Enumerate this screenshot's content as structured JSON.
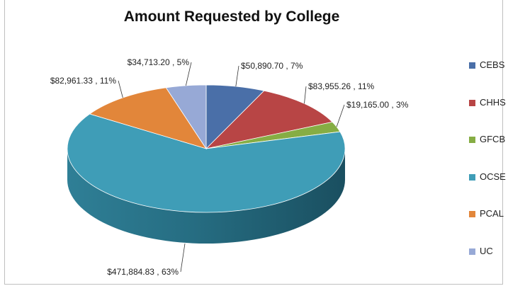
{
  "chart_data": {
    "type": "pie",
    "title": "Amount Requested by College",
    "series": [
      {
        "name": "CEBS",
        "value": 50890.7,
        "label": "$50,890.70 , 7%",
        "color": "#4a6fa8"
      },
      {
        "name": "CHHS",
        "value": 83955.26,
        "label": "$83,955.26 , 11%",
        "color": "#b84545"
      },
      {
        "name": "GFCB",
        "value": 19165.0,
        "label": "$19,165.00 , 3%",
        "color": "#86ad44"
      },
      {
        "name": "OCSE",
        "value": 471884.83,
        "label": "$471,884.83 , 63%",
        "color": "#3f9db7"
      },
      {
        "name": "PCAL",
        "value": 82961.33,
        "label": "$82,961.33 , 11%",
        "color": "#e2863a"
      },
      {
        "name": "UC",
        "value": 34713.2,
        "label": "$34,713.20 , 5%",
        "color": "#97a9d6"
      }
    ],
    "legend_position": "right",
    "style": "3d-exploded-pie"
  }
}
